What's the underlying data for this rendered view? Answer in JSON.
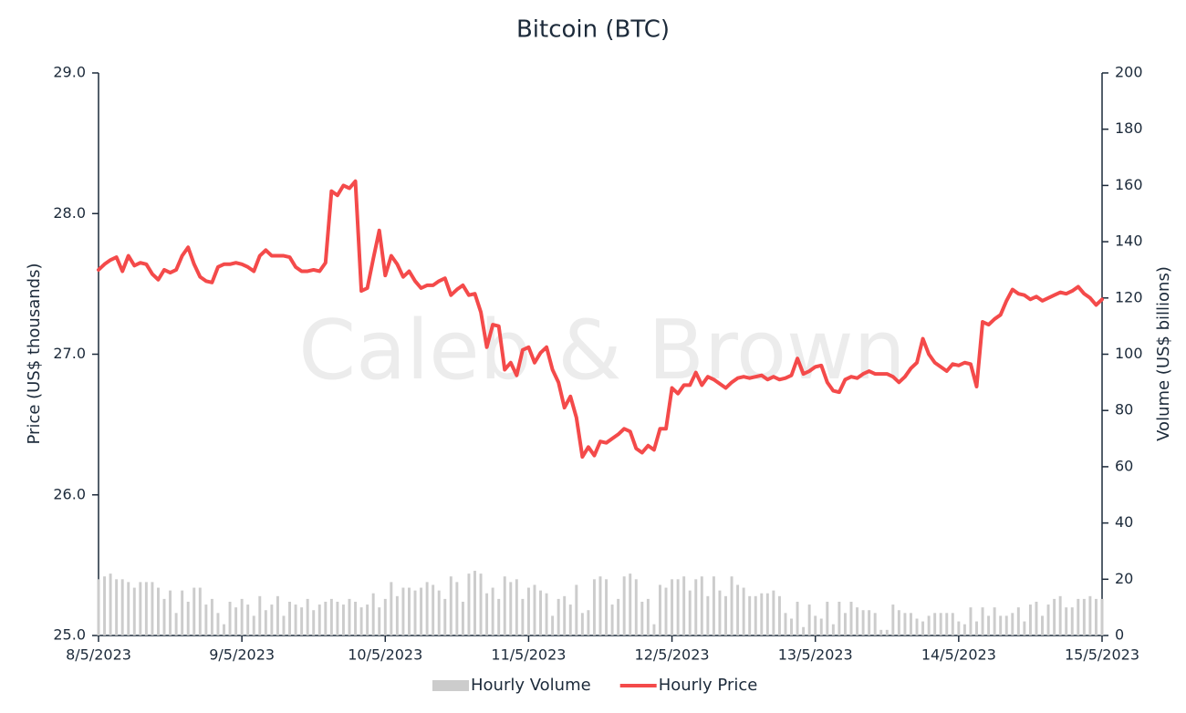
{
  "chart_data": {
    "type": "line",
    "title": "Bitcoin (BTC)",
    "watermark": "Caleb & Brown",
    "y_label": "Price (US$ thousands)",
    "y2_label": "Volume (US$ billions)",
    "categories": [
      "8/5/2023",
      null,
      null,
      null,
      null,
      null,
      null,
      null,
      null,
      null,
      null,
      null,
      null,
      null,
      null,
      null,
      null,
      null,
      null,
      null,
      null,
      null,
      null,
      null,
      "9/5/2023",
      null,
      null,
      null,
      null,
      null,
      null,
      null,
      null,
      null,
      null,
      null,
      null,
      null,
      null,
      null,
      null,
      null,
      null,
      null,
      null,
      null,
      null,
      null,
      "10/5/2023",
      null,
      null,
      null,
      null,
      null,
      null,
      null,
      null,
      null,
      null,
      null,
      null,
      null,
      null,
      null,
      null,
      null,
      null,
      null,
      null,
      null,
      null,
      null,
      "11/5/2023",
      null,
      null,
      null,
      null,
      null,
      null,
      null,
      null,
      null,
      null,
      null,
      null,
      null,
      null,
      null,
      null,
      null,
      null,
      null,
      null,
      null,
      null,
      null,
      "12/5/2023",
      null,
      null,
      null,
      null,
      null,
      null,
      null,
      null,
      null,
      null,
      null,
      null,
      null,
      null,
      null,
      null,
      null,
      null,
      null,
      null,
      null,
      null,
      null,
      "13/5/2023",
      null,
      null,
      null,
      null,
      null,
      null,
      null,
      null,
      null,
      null,
      null,
      null,
      null,
      null,
      null,
      null,
      null,
      null,
      null,
      null,
      null,
      null,
      null,
      "14/5/2023",
      null,
      null,
      null,
      null,
      null,
      null,
      null,
      null,
      null,
      null,
      null,
      null,
      null,
      null,
      null,
      null,
      null,
      null,
      null,
      null,
      null,
      null,
      null,
      "15/5/2023"
    ],
    "ylim": [
      25,
      29
    ],
    "yticks": [
      {
        "value": 25,
        "label": "25.0"
      },
      {
        "value": 26,
        "label": "26.0"
      },
      {
        "value": 27,
        "label": "27.0"
      },
      {
        "value": 28,
        "label": "28.0"
      },
      {
        "value": 29,
        "label": "29.0"
      }
    ],
    "y2lim": [
      0,
      200
    ],
    "y2ticks": [
      0,
      20,
      40,
      60,
      80,
      100,
      120,
      140,
      160,
      180,
      200
    ],
    "grid": false,
    "legend": "bottom",
    "series": [
      {
        "name": "Hourly Volume",
        "type": "bar",
        "axis": "y2",
        "color": "#cccccc",
        "values": [
          20,
          21,
          22,
          20,
          20,
          19,
          17,
          19,
          19,
          19,
          17,
          13,
          16,
          8,
          16,
          12,
          17,
          17,
          11,
          13,
          8,
          4,
          12,
          10,
          13,
          11,
          7,
          14,
          9,
          11,
          14,
          7,
          12,
          11,
          10,
          13,
          9,
          11,
          12,
          13,
          12,
          11,
          13,
          12,
          10,
          11,
          15,
          10,
          13,
          19,
          14,
          17,
          17,
          16,
          17,
          19,
          18,
          16,
          13,
          21,
          19,
          12,
          22,
          23,
          22,
          15,
          17,
          13,
          21,
          19,
          20,
          13,
          17,
          18,
          16,
          15,
          7,
          13,
          14,
          11,
          18,
          8,
          9,
          20,
          21,
          20,
          11,
          13,
          21,
          22,
          20,
          12,
          13,
          4,
          18,
          17,
          20,
          20,
          21,
          16,
          20,
          21,
          14,
          21,
          16,
          14,
          21,
          18,
          17,
          14,
          14,
          15,
          15,
          16,
          14,
          8,
          6,
          12,
          3,
          11,
          7,
          6,
          12,
          4,
          12,
          8,
          12,
          10,
          9,
          9,
          8,
          2,
          2,
          11,
          9,
          8,
          8,
          6,
          5,
          7,
          8,
          8,
          8,
          8,
          5,
          4,
          10,
          5,
          10,
          7,
          10,
          7,
          7,
          8,
          10,
          5,
          11,
          12,
          7,
          11,
          13,
          14,
          10,
          10,
          13,
          13,
          14,
          13,
          13
        ]
      },
      {
        "name": "Hourly Price",
        "type": "line",
        "color": "#f44a4a",
        "values": [
          27.6,
          27.64,
          27.67,
          27.69,
          27.59,
          27.7,
          27.63,
          27.65,
          27.64,
          27.57,
          27.53,
          27.6,
          27.58,
          27.6,
          27.7,
          27.76,
          27.64,
          27.55,
          27.52,
          27.51,
          27.62,
          27.64,
          27.64,
          27.65,
          27.64,
          27.62,
          27.59,
          27.7,
          27.74,
          27.7,
          27.7,
          27.7,
          27.69,
          27.62,
          27.59,
          27.59,
          27.6,
          27.59,
          27.65,
          28.16,
          28.13,
          28.2,
          28.18,
          28.23,
          27.45,
          27.47,
          27.68,
          27.88,
          27.56,
          27.7,
          27.64,
          27.55,
          27.59,
          27.52,
          27.47,
          27.49,
          27.49,
          27.52,
          27.54,
          27.42,
          27.46,
          27.49,
          27.42,
          27.43,
          27.3,
          27.05,
          27.21,
          27.2,
          26.89,
          26.94,
          26.85,
          27.03,
          27.05,
          26.94,
          27.01,
          27.05,
          26.89,
          26.8,
          26.62,
          26.7,
          26.55,
          26.27,
          26.34,
          26.28,
          26.38,
          26.37,
          26.4,
          26.43,
          26.47,
          26.45,
          26.33,
          26.3,
          26.35,
          26.32,
          26.47,
          26.47,
          26.76,
          26.72,
          26.78,
          26.78,
          26.87,
          26.78,
          26.84,
          26.82,
          26.79,
          26.76,
          26.8,
          26.83,
          26.84,
          26.83,
          26.84,
          26.85,
          26.82,
          26.84,
          26.82,
          26.83,
          26.85,
          26.97,
          26.86,
          26.88,
          26.91,
          26.92,
          26.8,
          26.74,
          26.73,
          26.82,
          26.84,
          26.83,
          26.86,
          26.88,
          26.86,
          26.86,
          26.86,
          26.84,
          26.8,
          26.84,
          26.9,
          26.94,
          27.11,
          27.0,
          26.94,
          26.91,
          26.88,
          26.93,
          26.92,
          26.94,
          26.93,
          26.77,
          27.23,
          27.21,
          27.25,
          27.28,
          27.38,
          27.46,
          27.43,
          27.42,
          27.39,
          27.41,
          27.38,
          27.4,
          27.42,
          27.44,
          27.43,
          27.45,
          27.48,
          27.43,
          27.4,
          27.35,
          27.39
        ]
      }
    ]
  }
}
